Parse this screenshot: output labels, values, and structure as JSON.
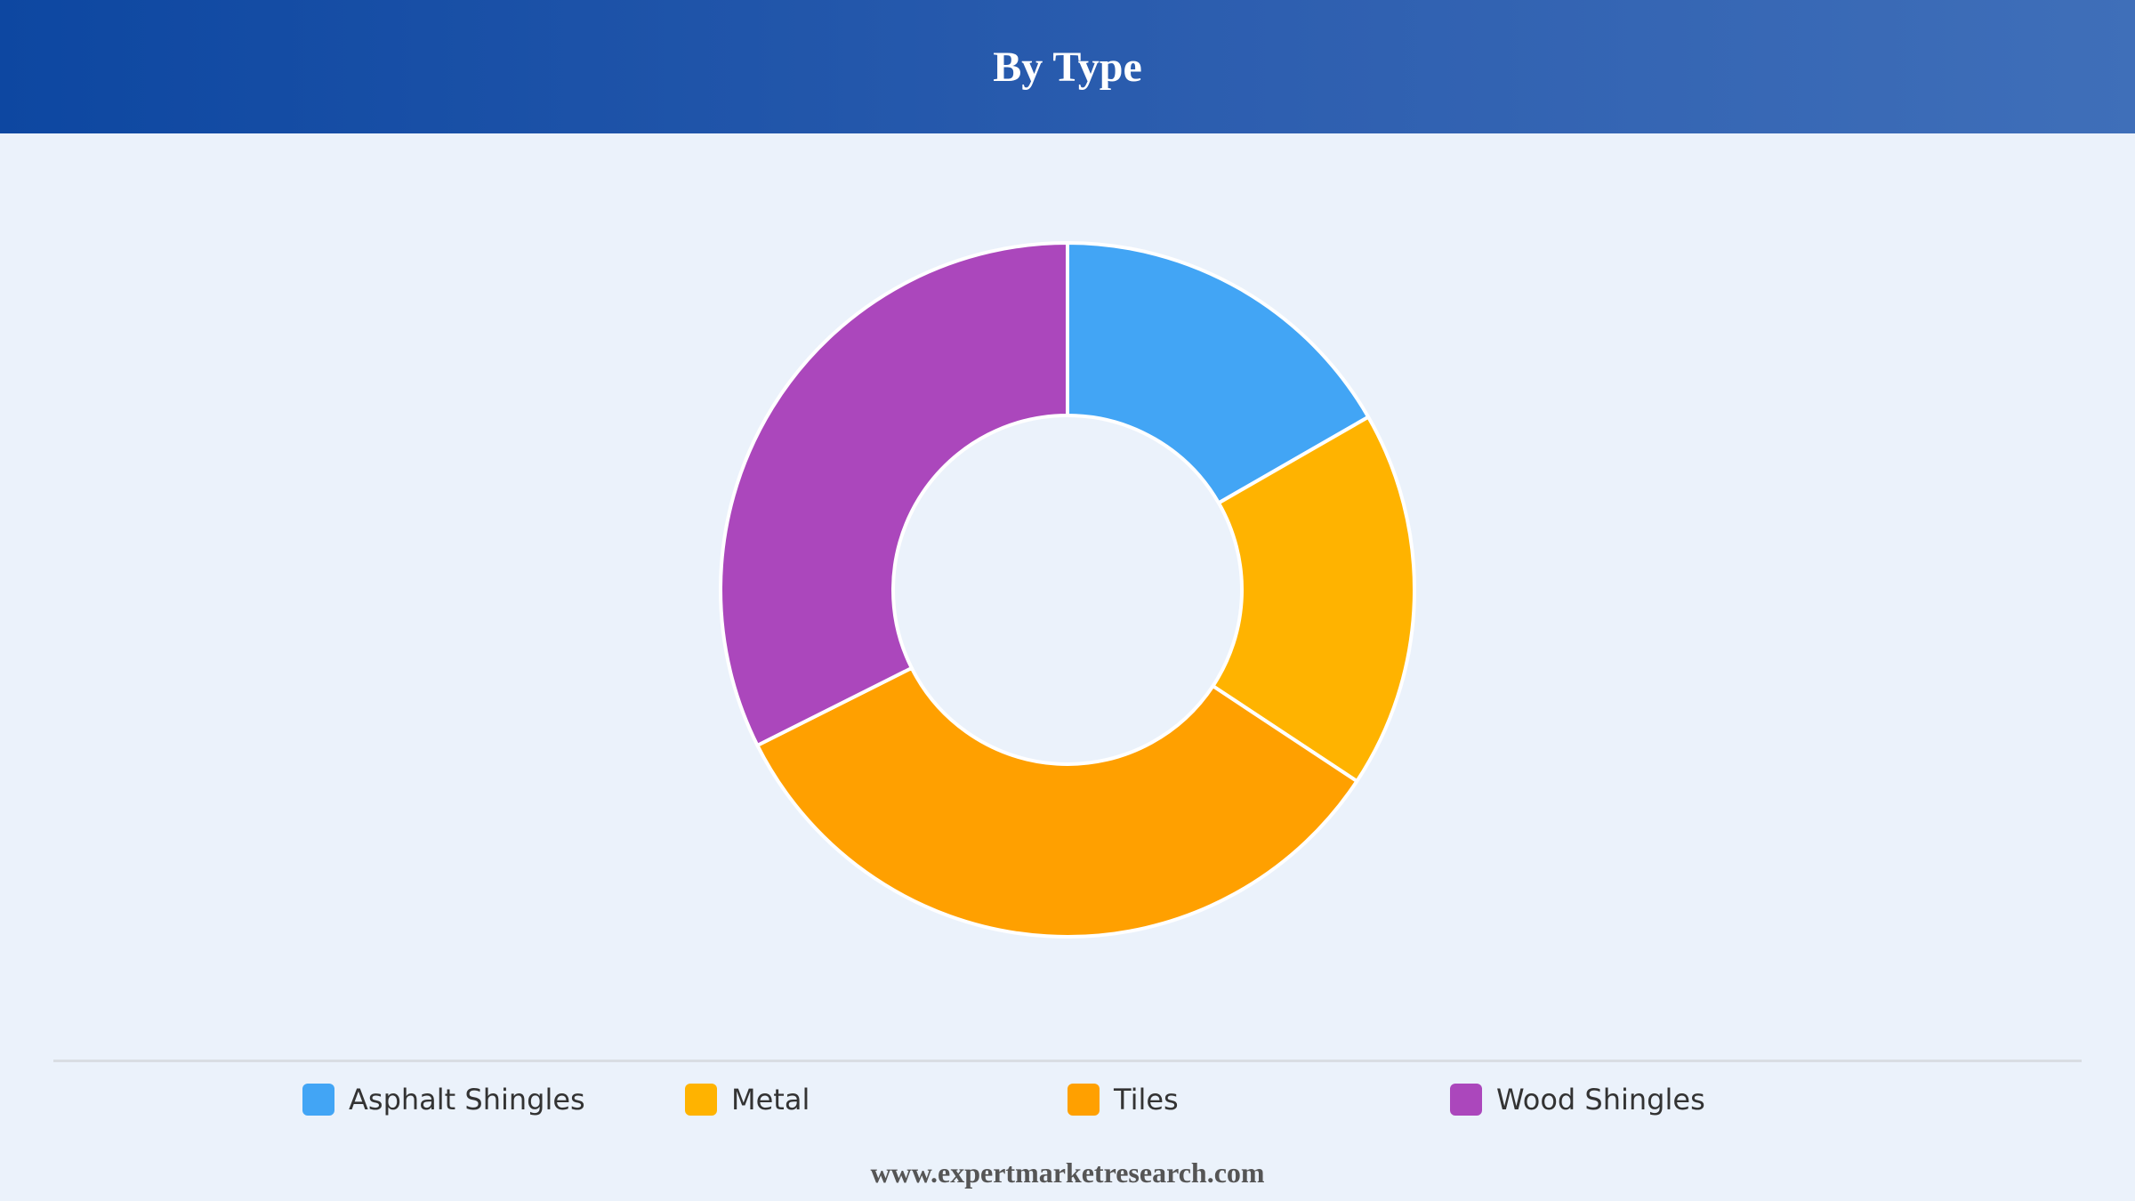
{
  "header": {
    "title": "By Type"
  },
  "chart_data": {
    "type": "pie",
    "variant": "donut",
    "title": "By Type",
    "categories": [
      "Asphalt Shingles",
      "Metal",
      "Tiles",
      "Wood Shingles"
    ],
    "values": [
      16.7,
      17.6,
      33.3,
      32.4
    ],
    "colors": [
      "#42a5f5",
      "#ffb300",
      "#ffa000",
      "#ab47bc"
    ],
    "legend_position": "bottom"
  },
  "footer": {
    "source": "www.expertmarketresearch.com"
  }
}
